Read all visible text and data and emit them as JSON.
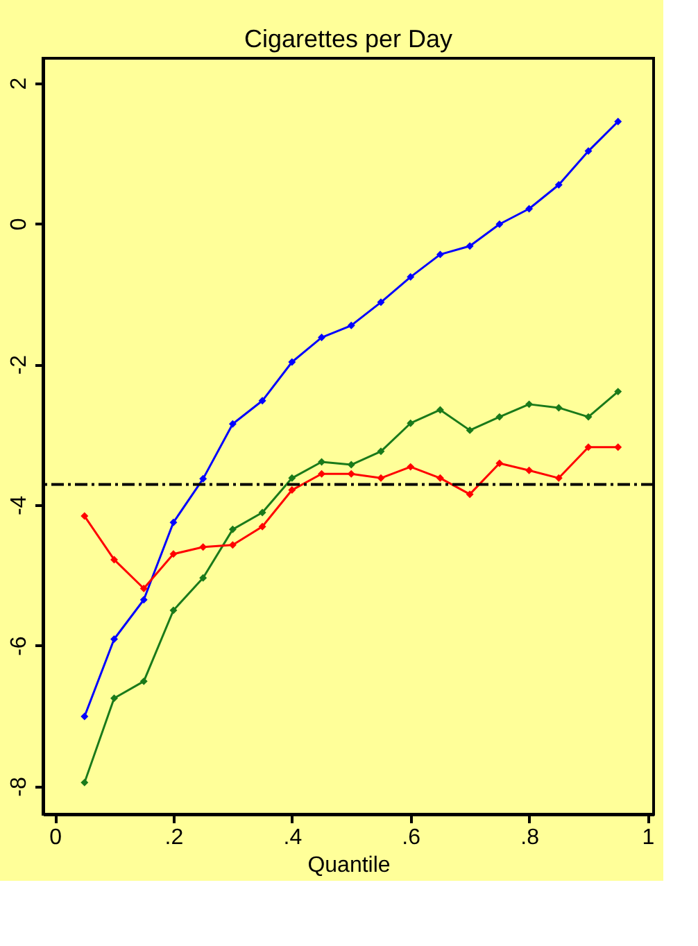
{
  "chart_data": {
    "type": "line",
    "title": "Cigarettes per Day",
    "xlabel": "Quantile",
    "x": [
      0.05,
      0.1,
      0.15,
      0.2,
      0.25,
      0.3,
      0.35,
      0.4,
      0.45,
      0.5,
      0.55,
      0.6,
      0.65,
      0.7,
      0.75,
      0.8,
      0.85,
      0.9,
      0.95
    ],
    "series": [
      {
        "color": "#0000ff",
        "values": [
          -7.01,
          -5.91,
          -5.35,
          -4.25,
          -3.63,
          -2.85,
          -2.52,
          -1.97,
          -1.62,
          -1.45,
          -1.12,
          -0.76,
          -0.44,
          -0.32,
          -0.01,
          0.21,
          0.55,
          1.03,
          1.45
        ]
      },
      {
        "color": "#1a7a1a",
        "values": [
          -7.95,
          -6.75,
          -6.51,
          -5.5,
          -5.04,
          -4.35,
          -4.11,
          -3.62,
          -3.39,
          -3.43,
          -3.24,
          -2.84,
          -2.65,
          -2.94,
          -2.75,
          -2.57,
          -2.62,
          -2.75,
          -2.39
        ]
      },
      {
        "color": "#ff0000",
        "values": [
          -4.16,
          -4.78,
          -5.19,
          -4.7,
          -4.6,
          -4.57,
          -4.31,
          -3.79,
          -3.56,
          -3.56,
          -3.62,
          -3.46,
          -3.62,
          -3.85,
          -3.41,
          -3.51,
          -3.62,
          -3.18,
          -3.18
        ]
      }
    ],
    "xlim": [
      -0.02,
      1.01
    ],
    "ylim": [
      -8.4,
      2.35
    ],
    "xticks": [
      0,
      {
        "value": 0.2,
        "label": ".2"
      },
      {
        "value": 0.4,
        "label": ".4"
      },
      {
        "value": 0.6,
        "label": ".6"
      },
      {
        "value": 0.8,
        "label": ".8"
      },
      1
    ],
    "yticks": [
      -8,
      -6,
      -4,
      -2,
      0,
      2
    ],
    "ref_lines": [
      {
        "axis": "y",
        "value": -3.71,
        "color": "#000000",
        "line_style": "dashdot"
      }
    ],
    "marker": "diamond",
    "line_style": "solid",
    "grid": false
  }
}
